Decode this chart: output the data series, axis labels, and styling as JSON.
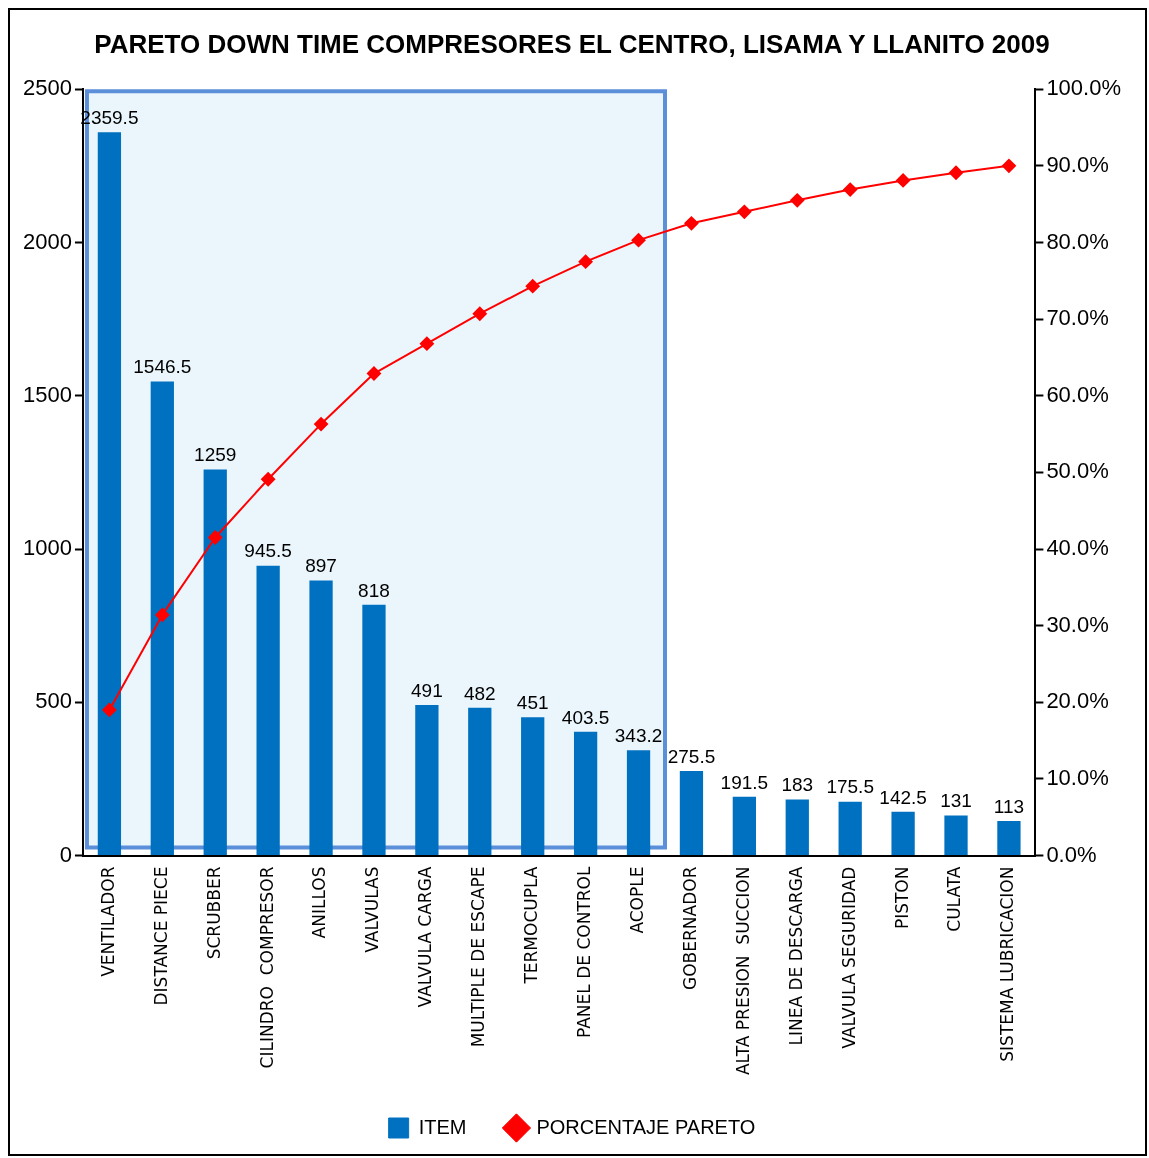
{
  "chart_data": {
    "type": "bar",
    "title": "PARETO DOWN TIME COMPRESORES EL CENTRO, LISAMA Y LLANITO 2009",
    "categories": [
      "VENTILADOR",
      "DISTANCE PIECE",
      "SCRUBBER",
      "CILINDRO  COMPRESOR",
      "ANILLOS",
      "VALVULAS",
      "VALVULA CARGA",
      "MULTIPLE DE ESCAPE",
      "TERMOCUPLA",
      "PANEL DE CONTROL",
      "ACOPLE",
      "GOBERNADOR",
      "ALTA PRESION  SUCCION",
      "LINEA DE DESCARGA",
      "VALVULA SEGURIDAD",
      "PISTON",
      "CULATA",
      "SISTEMA LUBRICACION"
    ],
    "series": [
      {
        "name": "ITEM",
        "color": "#0070c0",
        "values": [
          2359.5,
          1546.5,
          1259,
          945.5,
          897,
          818,
          491,
          482,
          451,
          403.5,
          343.2,
          275.5,
          191.5,
          183,
          175.5,
          142.5,
          131,
          113
        ],
        "value_labels": [
          "2359.5",
          "1546.5",
          "1259",
          "945.5",
          "897",
          "818",
          "491",
          "482",
          "451",
          "403.5",
          "343.2",
          "275.5",
          "191.5",
          "183",
          "175.5",
          "142.5",
          "131",
          "113"
        ]
      },
      {
        "name": "PORCENTAJE PARETO",
        "type": "line",
        "axis": "y2",
        "color": "#ff0000",
        "values": [
          19.0,
          31.4,
          41.5,
          49.1,
          56.3,
          62.9,
          66.8,
          70.7,
          74.3,
          77.5,
          80.3,
          82.5,
          84.0,
          85.5,
          86.9,
          88.1,
          89.1,
          90.0
        ]
      }
    ],
    "ylim": [
      0,
      2500
    ],
    "yticks": [
      0,
      500,
      1000,
      1500,
      2000,
      2500
    ],
    "y2lim": [
      0,
      100
    ],
    "y2ticks": [
      {
        "value": 0,
        "label": "0.0%"
      },
      {
        "value": 10,
        "label": "10.0%"
      },
      {
        "value": 20,
        "label": "20.0%"
      },
      {
        "value": 30,
        "label": "30.0%"
      },
      {
        "value": 40,
        "label": "40.0%"
      },
      {
        "value": 50,
        "label": "50.0%"
      },
      {
        "value": 60,
        "label": "60.0%"
      },
      {
        "value": 70,
        "label": "70.0%"
      },
      {
        "value": 80,
        "label": "80.0%"
      },
      {
        "value": 90,
        "label": "90.0%"
      },
      {
        "value": 100,
        "label": "100.0%"
      }
    ],
    "bands": [
      {
        "axis": "x",
        "from": "VENTILADOR",
        "to": "ACOPLE",
        "color": "#dcf0fa"
      }
    ],
    "grid": false,
    "legend": "bottom",
    "marker": "diamond",
    "line_style": "solid"
  }
}
